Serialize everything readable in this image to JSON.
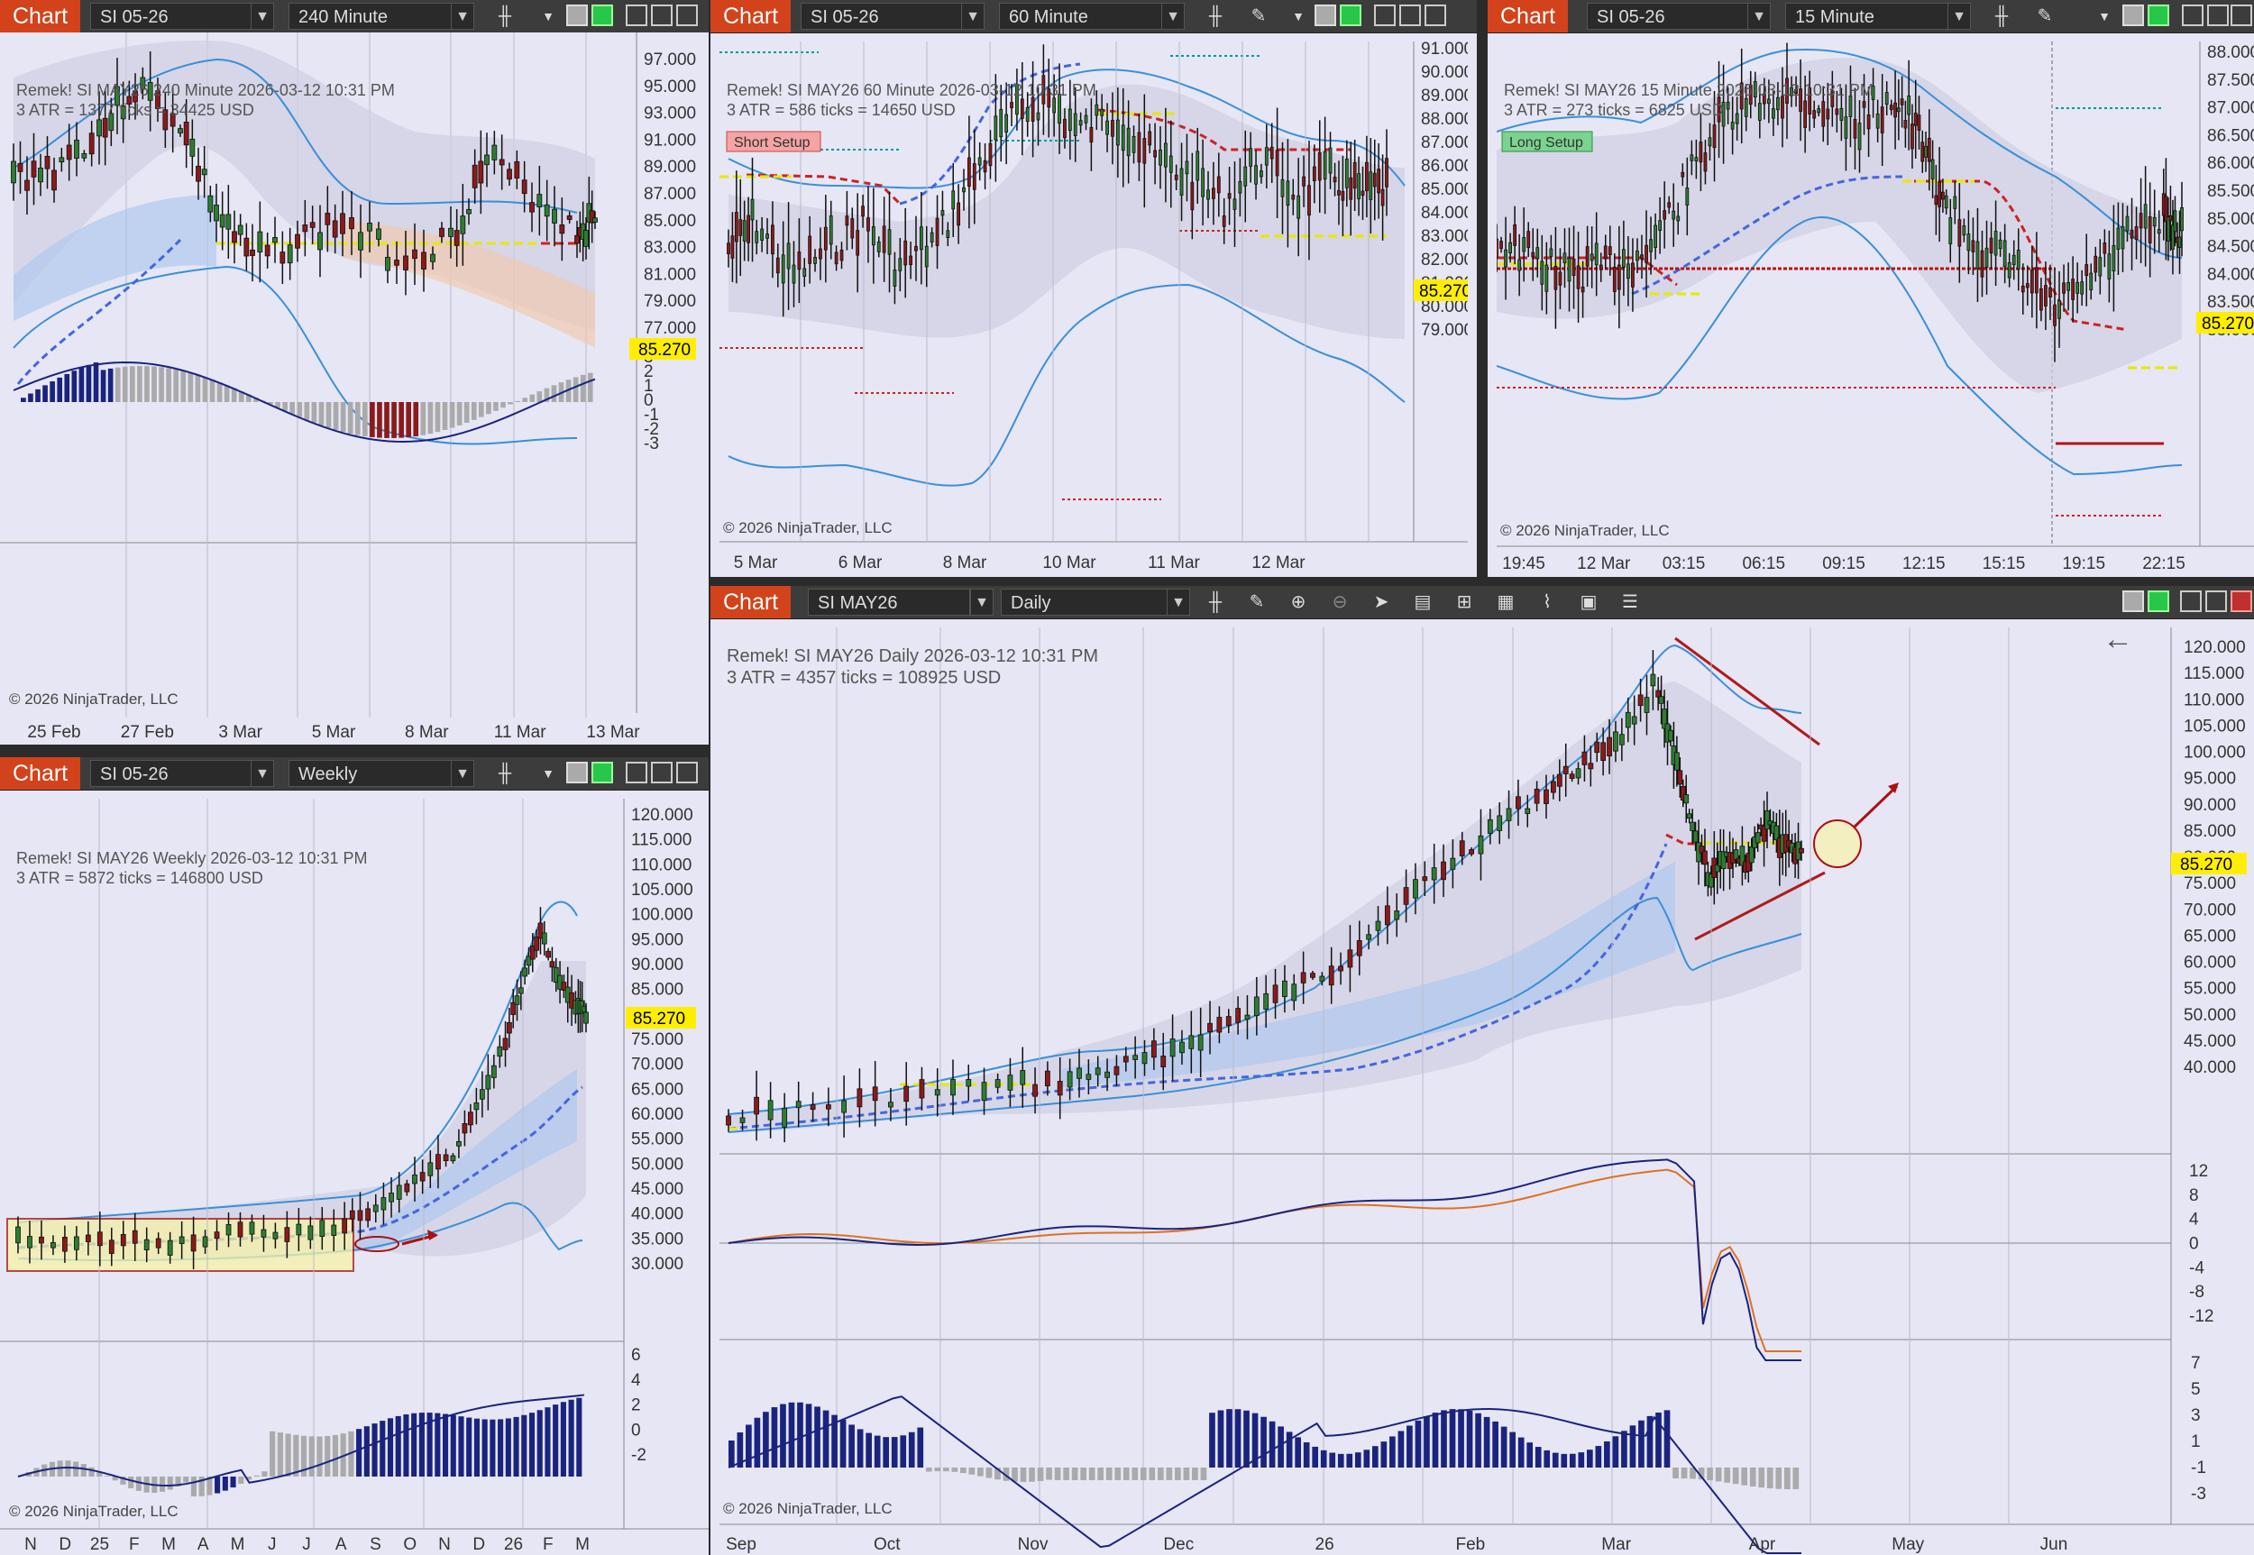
{
  "app": {
    "tab_label": "Chart"
  },
  "windows": {
    "w240": {
      "instrument": "SI 05-26",
      "period": "240 Minute",
      "header": "Remek!  SI MAY26  240 Minute  2026-03-12 10:31 PM",
      "atr": "3 ATR = 1377 ticks = 34425 USD",
      "price": "85.270",
      "y_ticks": [
        "97.000",
        "95.000",
        "93.000",
        "91.000",
        "89.000",
        "87.000",
        "85.000",
        "83.000",
        "81.000",
        "79.000",
        "77.000"
      ],
      "osc_ticks": [
        "3",
        "2",
        "1",
        "0",
        "-1",
        "-2",
        "-3"
      ],
      "x_ticks": [
        "25 Feb",
        "27 Feb",
        "3 Mar",
        "5 Mar",
        "8 Mar",
        "11 Mar",
        "13 Mar"
      ],
      "copyright": "© 2026 NinjaTrader, LLC"
    },
    "w60": {
      "instrument": "SI 05-26",
      "period": "60 Minute",
      "header": "Remek!  SI MAY26  60 Minute  2026-03-12 10:31 PM",
      "atr": "3 ATR = 586 ticks = 14650 USD",
      "badge": "Short Setup",
      "price": "85.270",
      "y_ticks": [
        "91.000",
        "90.000",
        "89.000",
        "88.000",
        "87.000",
        "86.000",
        "85.000",
        "84.000",
        "83.000",
        "82.000",
        "81.000",
        "80.000",
        "79.000"
      ],
      "x_ticks": [
        "5 Mar",
        "6 Mar",
        "8 Mar",
        "10 Mar",
        "11 Mar",
        "12 Mar"
      ],
      "copyright": "© 2026 NinjaTrader, LLC"
    },
    "w15": {
      "instrument": "SI 05-26",
      "period": "15 Minute",
      "header": "Remek!  SI MAY26  15 Minute  2026-03-12 10:31 PM",
      "atr": "3 ATR = 273 ticks = 6825 USD",
      "badge": "Long Setup",
      "price": "85.270",
      "y_ticks": [
        "88.000",
        "87.500",
        "87.000",
        "86.500",
        "86.000",
        "85.500",
        "85.000",
        "84.500",
        "84.000",
        "83.500",
        "83.000"
      ],
      "x_ticks": [
        "19:45",
        "12 Mar",
        "03:15",
        "06:15",
        "09:15",
        "12:15",
        "15:15",
        "19:15",
        "22:15"
      ],
      "copyright": "© 2026 NinjaTrader, LLC"
    },
    "weekly": {
      "instrument": "SI 05-26",
      "period": "Weekly",
      "header": "Remek!  SI MAY26  Weekly  2026-03-12 10:31 PM",
      "atr": "3 ATR = 5872 ticks = 146800 USD",
      "price": "85.270",
      "y_ticks": [
        "120.000",
        "115.000",
        "110.000",
        "105.000",
        "100.000",
        "95.000",
        "90.000",
        "85.000",
        "80.000",
        "75.000",
        "70.000",
        "65.000",
        "60.000",
        "55.000",
        "50.000",
        "45.000",
        "40.000",
        "35.000",
        "30.000"
      ],
      "osc_ticks": [
        "6",
        "4",
        "2",
        "0",
        "-2"
      ],
      "x_ticks": [
        "N",
        "D",
        "25",
        "F",
        "M",
        "A",
        "M",
        "J",
        "J",
        "A",
        "S",
        "O",
        "N",
        "D",
        "26",
        "F",
        "M"
      ],
      "copyright": "© 2026 NinjaTrader, LLC"
    },
    "daily": {
      "instrument": "SI MAY26",
      "period": "Daily",
      "header": "Remek!  SI MAY26  Daily  2026-03-12 10:31 PM",
      "atr": "3 ATR = 4357 ticks = 108925 USD",
      "price": "85.270",
      "y_ticks": [
        "120.000",
        "115.000",
        "110.000",
        "105.000",
        "100.000",
        "95.000",
        "90.000",
        "85.000",
        "80.000",
        "75.000",
        "70.000",
        "65.000",
        "60.000",
        "55.000",
        "50.000",
        "45.000",
        "40.000"
      ],
      "osc1_ticks": [
        "12",
        "8",
        "4",
        "0",
        "-4",
        "-8",
        "-12"
      ],
      "osc2_ticks": [
        "7",
        "5",
        "3",
        "1",
        "-1",
        "-3"
      ],
      "x_ticks": [
        "Sep",
        "Oct",
        "Nov",
        "Dec",
        "26",
        "Feb",
        "Mar",
        "Apr",
        "May",
        "Jun"
      ],
      "copyright": "© 2026 NinjaTrader, LLC"
    }
  },
  "colors": {
    "tab": "#d2431c",
    "bg": "#e6e6f5",
    "band": "#3399ee",
    "up": "#2e7d32",
    "down": "#8b1a1a",
    "price": "#ffee00"
  }
}
